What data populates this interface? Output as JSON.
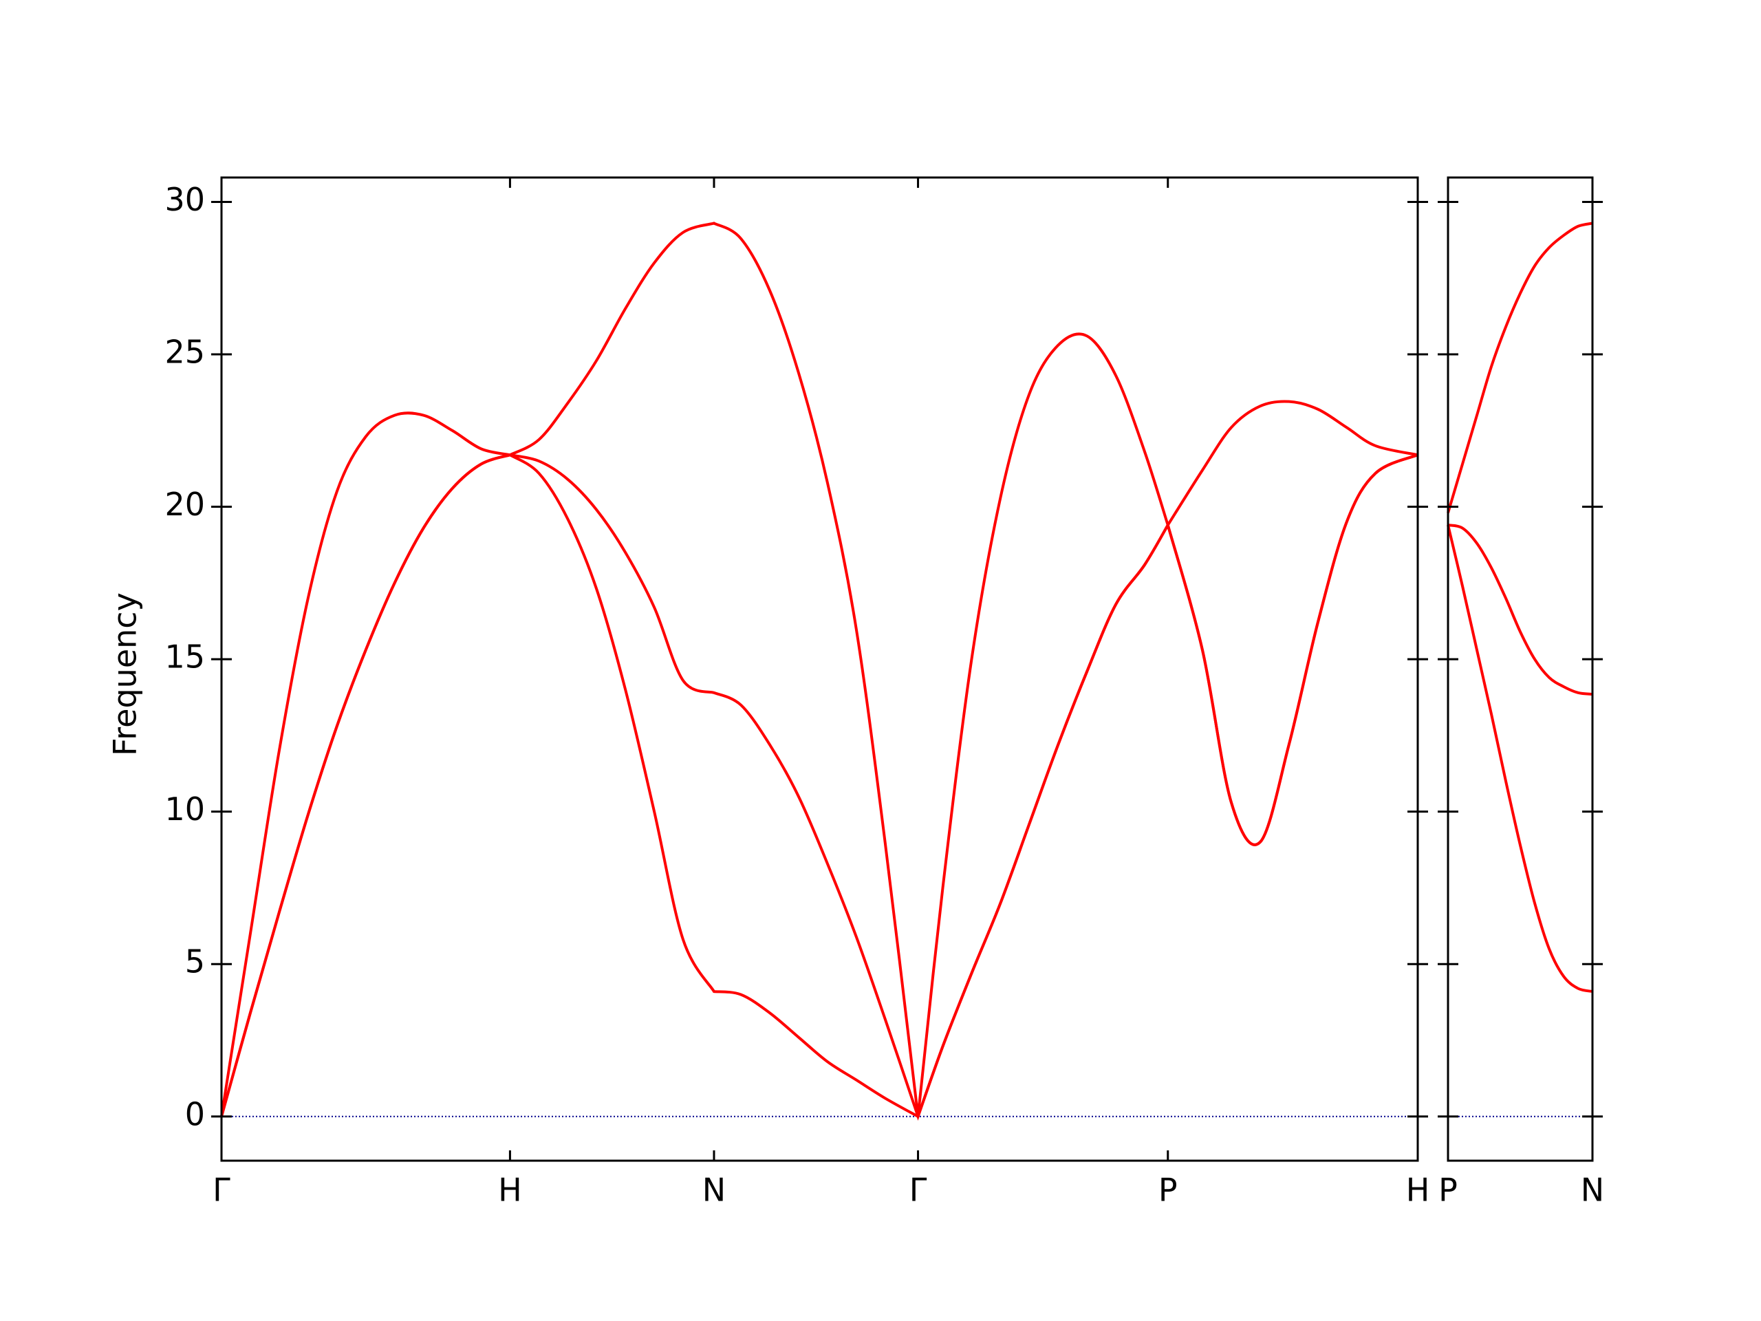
{
  "chart_data": [
    {
      "type": "line",
      "ylabel": "Frequency",
      "x": [
        0,
        0.1,
        0.2,
        0.3,
        0.4,
        0.5,
        0.6,
        0.7,
        0.8,
        0.9,
        1,
        1.1,
        1.2,
        1.3,
        1.4,
        1.5,
        1.6,
        1.7071,
        1.8,
        1.9,
        2.0,
        2.1,
        2.2,
        2.3,
        2.4142,
        2.5,
        2.6,
        2.7,
        2.8,
        2.9,
        3.0,
        3.1,
        3.2,
        3.2802,
        3.4,
        3.5,
        3.6,
        3.7,
        3.8,
        3.9,
        4.0,
        4.1463
      ],
      "series": [
        {
          "color": "#ff0000",
          "values": [
            0,
            3.4,
            6.7,
            9.9,
            12.8,
            15.3,
            17.5,
            19.3,
            20.6,
            21.4,
            21.7,
            21.1,
            19.6,
            17.3,
            14.0,
            10.0,
            5.8,
            4.1,
            4.0,
            3.4,
            2.6,
            1.8,
            1.2,
            0.6,
            0,
            2.3,
            4.7,
            7.0,
            9.6,
            12.2,
            14.6,
            16.8,
            18.1,
            19.4,
            15.3,
            10.3,
            9.0,
            12.2,
            16.2,
            19.5,
            21.1,
            21.7
          ]
        },
        {
          "color": "#ff0000",
          "values": [
            0,
            3.4,
            6.7,
            9.9,
            12.8,
            15.3,
            17.5,
            19.3,
            20.6,
            21.4,
            21.7,
            21.5,
            20.9,
            19.9,
            18.5,
            16.7,
            14.3,
            13.9,
            13.5,
            12.2,
            10.5,
            8.3,
            5.9,
            3.2,
            0,
            2.3,
            4.7,
            7.0,
            9.6,
            12.2,
            14.6,
            16.8,
            18.1,
            19.4,
            15.3,
            10.3,
            9.0,
            12.2,
            16.2,
            19.5,
            21.1,
            21.7
          ]
        },
        {
          "color": "#ff0000",
          "values": [
            0,
            6,
            12,
            17,
            20.5,
            22.3,
            23,
            23,
            22.5,
            21.9,
            21.7,
            22.2,
            23.4,
            24.8,
            26.5,
            28.0,
            29.0,
            29.3,
            28.8,
            27.1,
            24.4,
            20.8,
            16.0,
            9.0,
            0,
            7.5,
            15,
            20.3,
            23.7,
            25.3,
            25.6,
            24.3,
            21.8,
            19.4,
            21.2,
            22.6,
            23.3,
            23.45,
            23.2,
            22.6,
            22.0,
            21.7
          ]
        }
      ],
      "hline": {
        "y": 0,
        "color": "#00008b"
      },
      "xlim": [
        0,
        4.1463
      ],
      "xticks": [
        {
          "value": 0,
          "label": "Γ"
        },
        {
          "value": 1,
          "label": "H"
        },
        {
          "value": 1.7071,
          "label": "N"
        },
        {
          "value": 2.4142,
          "label": "Γ"
        },
        {
          "value": 3.2802,
          "label": "P"
        },
        {
          "value": 4.1463,
          "label": "H"
        }
      ],
      "ylim": [
        -1.45,
        30.8
      ],
      "yticks": [
        0,
        5,
        10,
        15,
        20,
        25,
        30
      ],
      "ytick_labels": true
    },
    {
      "type": "line",
      "x": [
        0,
        0.05,
        0.1,
        0.15,
        0.2,
        0.25,
        0.3,
        0.35,
        0.4,
        0.45,
        0.5
      ],
      "series": [
        {
          "color": "#ff0000",
          "values": [
            19.4,
            17.4,
            15.3,
            13.2,
            11.0,
            8.9,
            7.0,
            5.5,
            4.6,
            4.2,
            4.1
          ]
        },
        {
          "color": "#ff0000",
          "values": [
            19.4,
            19.3,
            18.8,
            18.0,
            17.0,
            15.9,
            15.0,
            14.4,
            14.1,
            13.9,
            13.85
          ]
        },
        {
          "color": "#ff0000",
          "values": [
            19.8,
            21.4,
            23.0,
            24.6,
            25.9,
            27.0,
            27.9,
            28.5,
            28.9,
            29.2,
            29.3
          ]
        }
      ],
      "hline": {
        "y": 0,
        "color": "#00008b"
      },
      "xlim": [
        0,
        0.5
      ],
      "xticks": [
        {
          "value": 0,
          "label": "P"
        },
        {
          "value": 0.5,
          "label": "N"
        }
      ],
      "ylim": [
        -1.45,
        30.8
      ],
      "yticks": [
        0,
        5,
        10,
        15,
        20,
        25,
        30
      ],
      "ytick_labels": false
    }
  ]
}
